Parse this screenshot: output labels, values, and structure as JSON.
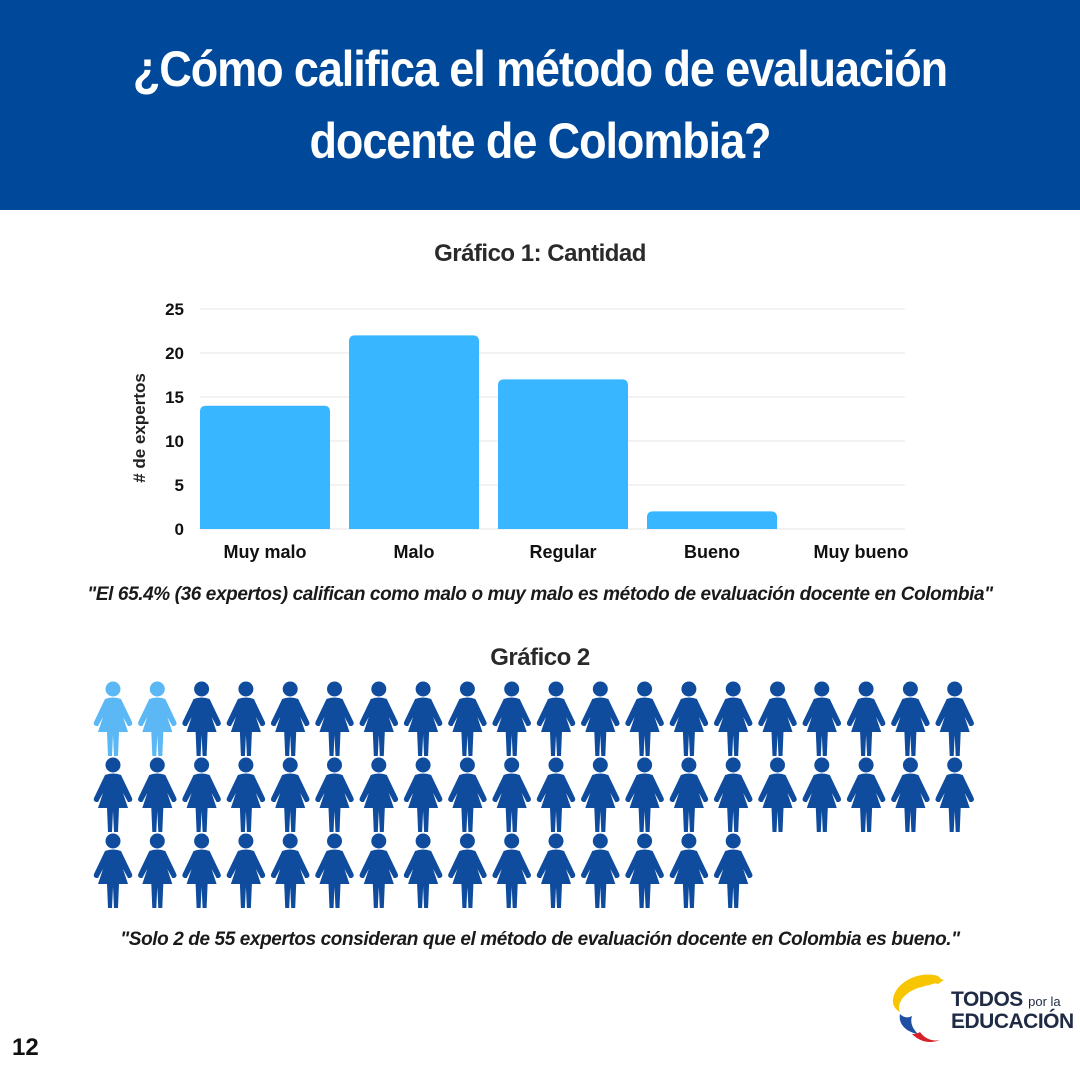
{
  "header": {
    "title": "¿Cómo califica el método de evaluación docente de Colombia?"
  },
  "chart1": {
    "title": "Gráfico 1: Cantidad",
    "quote": "\"El 65.4% (36 expertos) califican como malo o muy malo es método de evaluación docente en Colombia\""
  },
  "chart2": {
    "title": "Gráfico 2",
    "quote": "\"Solo 2 de 55 expertos consideran que el método de evaluación docente en Colombia es bueno.\""
  },
  "chart_data": [
    {
      "type": "bar",
      "title": "Gráfico 1: Cantidad",
      "xlabel": "",
      "ylabel": "# de expertos",
      "categories": [
        "Muy malo",
        "Malo",
        "Regular",
        "Bueno",
        "Muy bueno"
      ],
      "values": [
        14,
        22,
        17,
        2,
        0
      ],
      "ylim": [
        0,
        25
      ],
      "yticks": [
        0,
        5,
        10,
        15,
        20,
        25
      ],
      "grid": true,
      "color": "#38b6ff"
    },
    {
      "type": "pictogram",
      "title": "Gráfico 2",
      "total": 55,
      "highlighted": 2,
      "highlight_color": "#5bb8f5",
      "base_color": "#0f4c9e"
    }
  ],
  "footer": {
    "page_number": "12",
    "logo_line1": "TODOS",
    "logo_small": "por la",
    "logo_line2": "EDUCACIÓN"
  },
  "colors": {
    "header_bg": "#00489a",
    "bar": "#38b6ff",
    "icon_dark": "#0f4c9e",
    "icon_light": "#5bb8f5"
  }
}
